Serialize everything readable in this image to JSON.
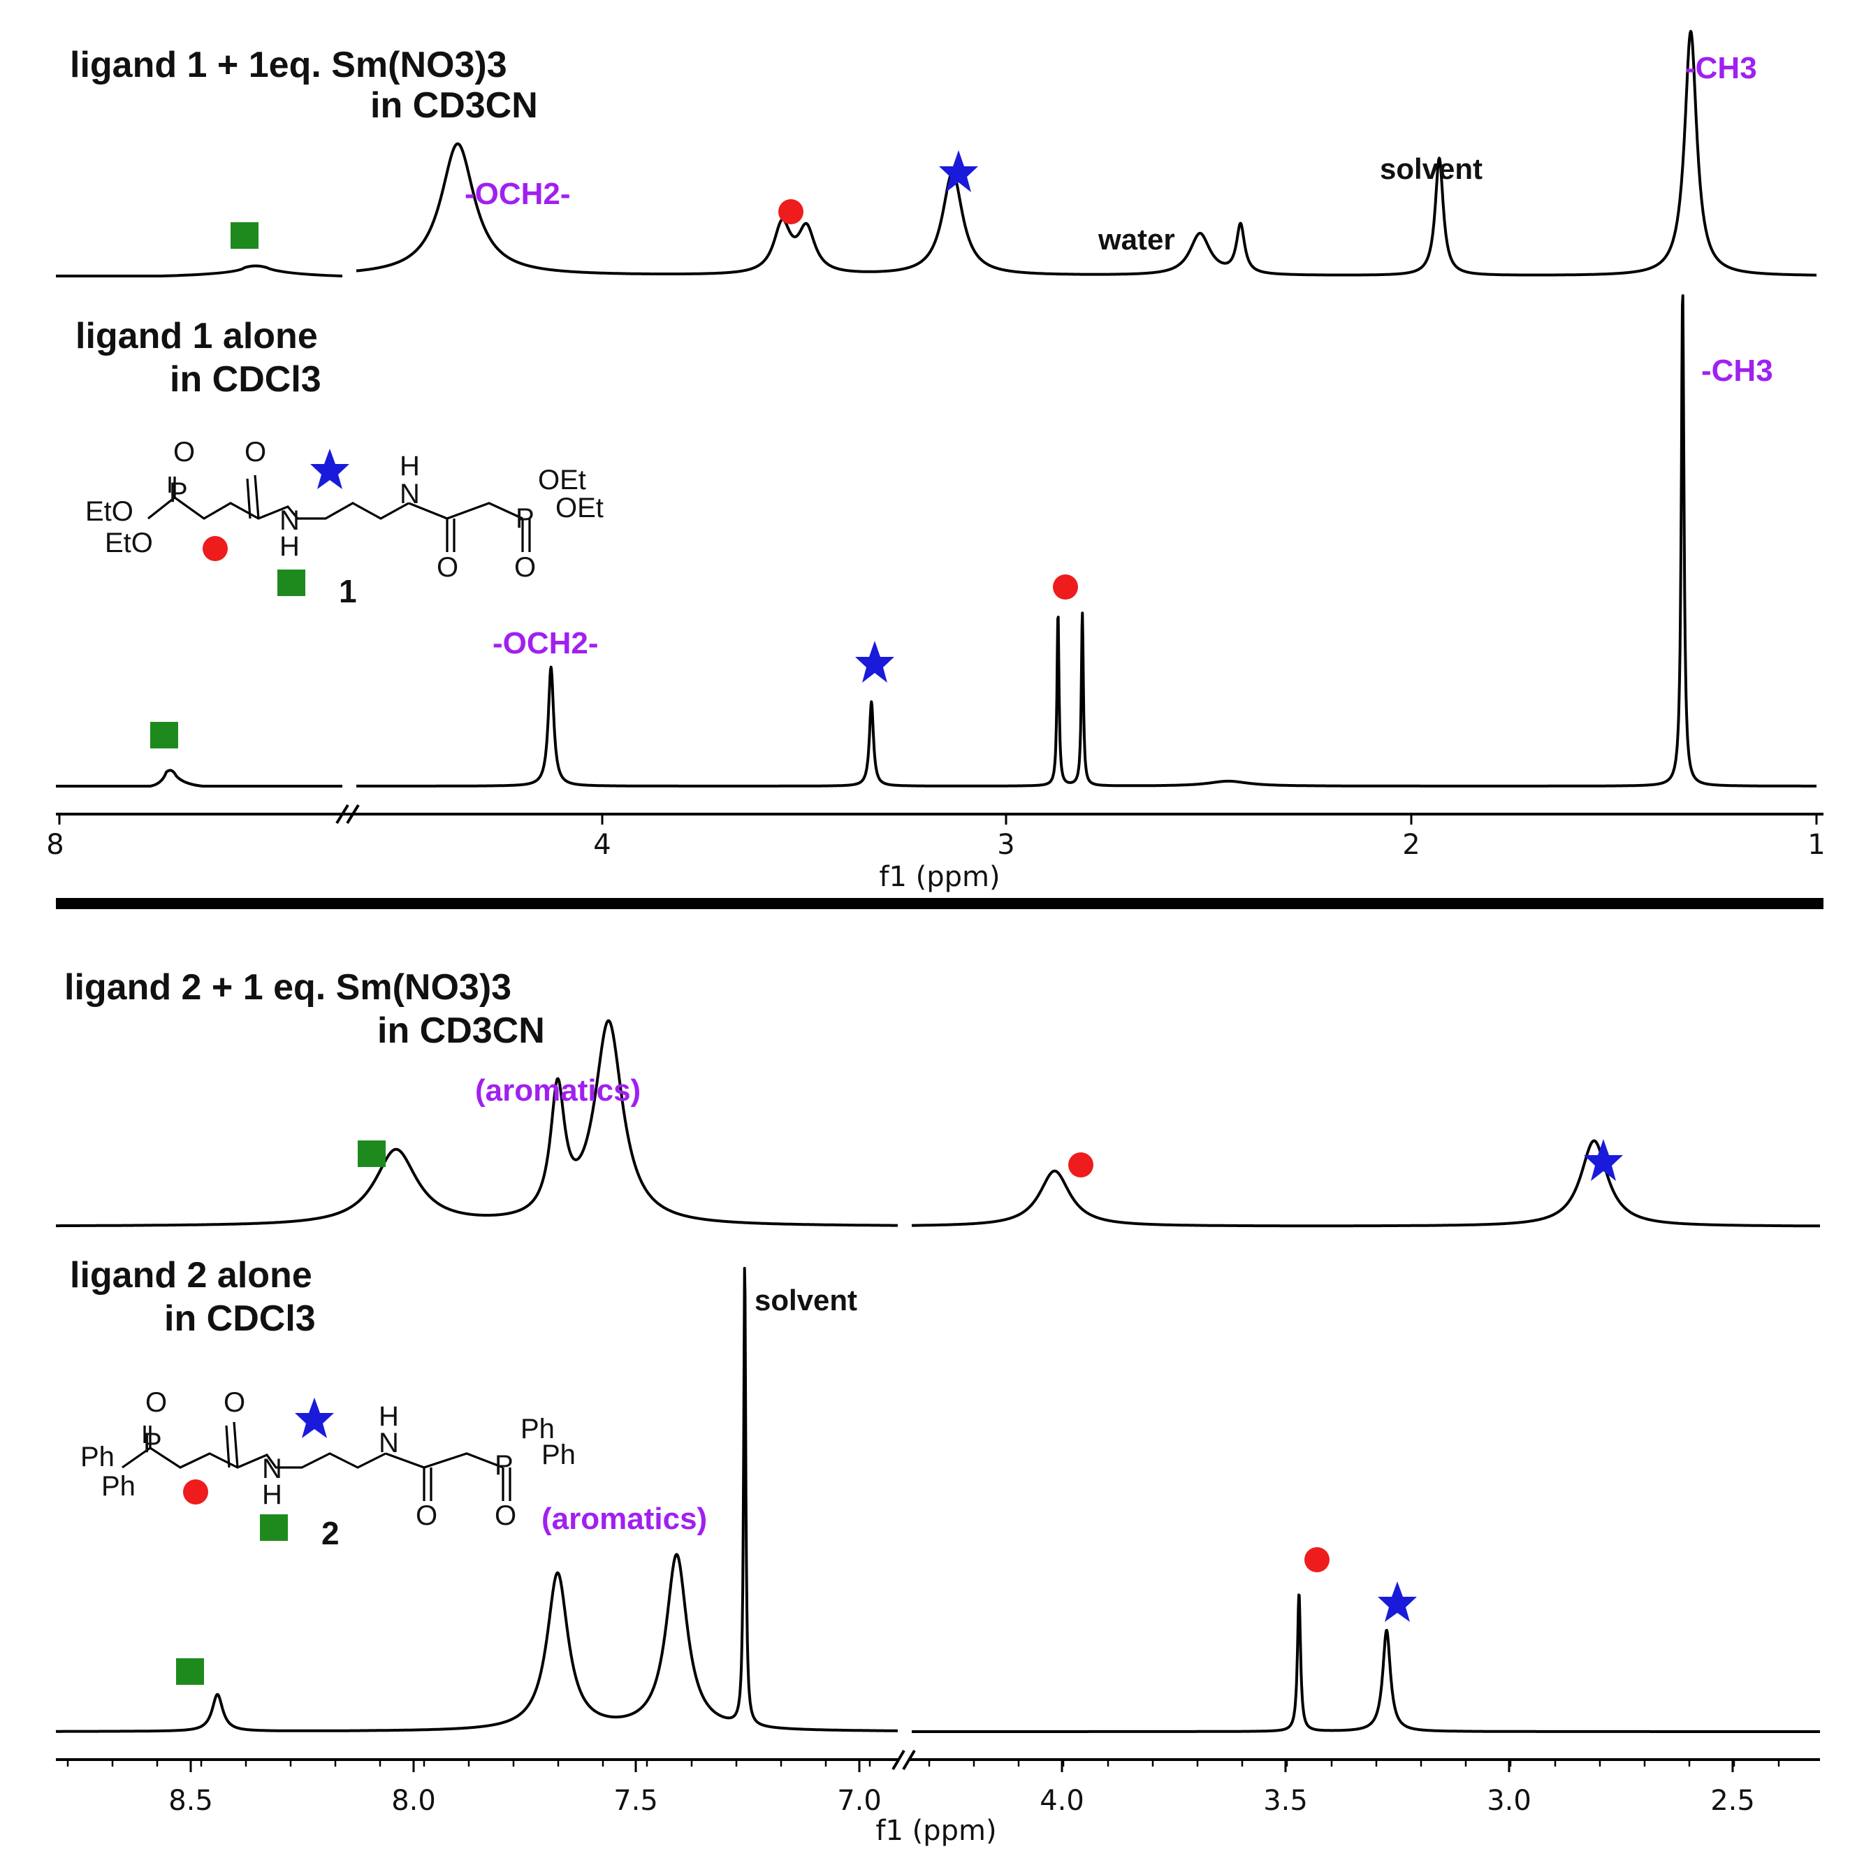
{
  "chart_data": [
    {
      "type": "line",
      "title": "ligand 1 + 1eq. Sm(NO3)3 in CD3CN",
      "title_lines": [
        "ligand 1 + 1eq. Sm(NO3)3",
        "in CD3CN"
      ],
      "xlabel": "f1 (ppm)",
      "axis_break": "between 8 ppm region and 4 ppm region",
      "peaks": [
        {
          "ppm": 7.65,
          "height": 0.04,
          "width": 0.12,
          "marker": "square"
        },
        {
          "ppm": 4.35,
          "height": 0.54,
          "width": 0.05,
          "label": "-OCH2-"
        },
        {
          "ppm": 3.55,
          "height": 0.2,
          "width": 0.025,
          "marker": "circle"
        },
        {
          "ppm": 3.49,
          "height": 0.18,
          "width": 0.025
        },
        {
          "ppm": 3.13,
          "height": 0.42,
          "width": 0.03,
          "marker": "star"
        },
        {
          "ppm": 2.52,
          "height": 0.17,
          "width": 0.03,
          "label": "water"
        },
        {
          "ppm": 2.42,
          "height": 0.2,
          "width": 0.012
        },
        {
          "ppm": 1.93,
          "height": 0.48,
          "width": 0.012,
          "label": "solvent"
        },
        {
          "ppm": 1.31,
          "height": 1.0,
          "width": 0.018,
          "label": "-CH3"
        }
      ]
    },
    {
      "type": "line",
      "title": "ligand 1 alone in CDCl3",
      "title_lines": [
        "ligand 1 alone",
        "in CDCl3"
      ],
      "xlabel": "f1 (ppm)",
      "x_ticks_left": [
        "8"
      ],
      "x_ticks": [
        "4",
        "3",
        "2",
        "1"
      ],
      "compound_number": "1",
      "peaks": [
        {
          "ppm": 7.75,
          "height": 0.04,
          "width": 0.03,
          "marker": "square"
        },
        {
          "ppm": 4.12,
          "height": 0.24,
          "width": 0.008,
          "label": "-OCH2-"
        },
        {
          "ppm": 3.33,
          "height": 0.17,
          "width": 0.006,
          "marker": "star"
        },
        {
          "ppm": 2.87,
          "height": 0.35,
          "width": 0.003,
          "marker": "circle"
        },
        {
          "ppm": 2.81,
          "height": 0.35,
          "width": 0.003
        },
        {
          "ppm": 2.45,
          "height": 0.01,
          "width": 0.06
        },
        {
          "ppm": 1.33,
          "height": 1.0,
          "width": 0.004,
          "label": "-CH3"
        }
      ]
    },
    {
      "type": "line",
      "title": "ligand 2 + 1 eq. Sm(NO3)3 in CD3CN",
      "title_lines": [
        "ligand 2 + 1 eq. Sm(NO3)3",
        "in CD3CN"
      ],
      "xlabel": "f1 (ppm)",
      "peaks": [
        {
          "ppm": 8.08,
          "height": 0.3,
          "width": 0.06,
          "marker": "square"
        },
        {
          "ppm": 7.7,
          "height": 0.5,
          "width": 0.02
        },
        {
          "ppm": 7.58,
          "height": 0.8,
          "width": 0.04,
          "label": "(aromatics)"
        },
        {
          "ppm": 3.97,
          "height": 0.22,
          "width": 0.04,
          "marker": "circle"
        },
        {
          "ppm": 2.8,
          "height": 0.34,
          "width": 0.035,
          "marker": "star"
        }
      ]
    },
    {
      "type": "line",
      "title": "ligand 2 alone in CDCl3",
      "title_lines": [
        "ligand 2 alone",
        "in CDCl3"
      ],
      "xlabel": "f1 (ppm)",
      "x_ticks": [
        "8.5",
        "8.0",
        "7.5",
        "7.0",
        "4.0",
        "3.5",
        "3.0",
        "2.5"
      ],
      "compound_number": "2",
      "peaks": [
        {
          "ppm": 8.5,
          "height": 0.08,
          "width": 0.015,
          "marker": "square"
        },
        {
          "ppm": 7.7,
          "height": 0.34,
          "width": 0.03
        },
        {
          "ppm": 7.42,
          "height": 0.38,
          "width": 0.03,
          "label": "(aromatics)"
        },
        {
          "ppm": 7.26,
          "height": 1.0,
          "width": 0.003,
          "label": "solvent"
        },
        {
          "ppm": 3.44,
          "height": 0.3,
          "width": 0.004,
          "marker": "circle"
        },
        {
          "ppm": 3.25,
          "height": 0.22,
          "width": 0.01,
          "marker": "star"
        }
      ]
    }
  ],
  "structure_labels": {
    "eto1": "EtO",
    "eto2": "EtO",
    "oet1": "OEt",
    "oet2": "OEt",
    "ph1": "Ph",
    "ph2": "Ph",
    "ph3": "Ph",
    "ph4": "Ph",
    "p": "P",
    "o": "O",
    "n": "N",
    "h": "H"
  },
  "colors": {
    "square": "#1e8a1e",
    "circle": "#ee1c1c",
    "star": "#1a1adb",
    "annotation": "#a020f0"
  }
}
